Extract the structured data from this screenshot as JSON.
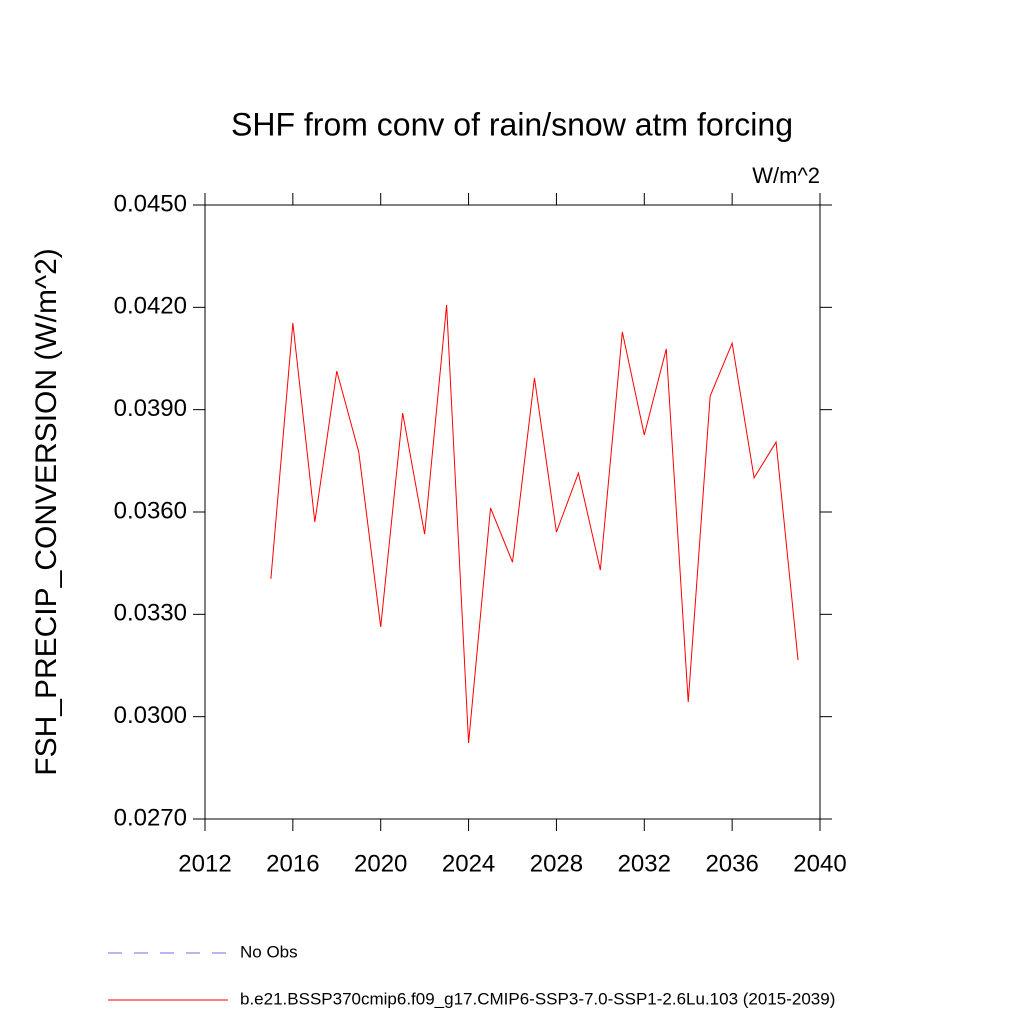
{
  "chart_data": {
    "type": "line",
    "title": "SHF from conv of rain/snow atm forcing",
    "units": "W/m^2",
    "y_label": "FSH_PRECIP_CONVERSION  (W/m^2)",
    "x": [
      2015,
      2016,
      2017,
      2018,
      2019,
      2020,
      2021,
      2022,
      2023,
      2024,
      2025,
      2026,
      2027,
      2028,
      2029,
      2030,
      2031,
      2032,
      2033,
      2034,
      2035,
      2036,
      2037,
      2038,
      2039
    ],
    "series": [
      {
        "name": "b.e21.BSSP370cmip6.f09_g17.CMIP6-SSP3-7.0-SSP1-2.6Lu.103 (2015-2039)",
        "color": "#ff0000",
        "values": [
          0.03404,
          0.04154,
          0.03571,
          0.04013,
          0.03776,
          0.03263,
          0.0389,
          0.03535,
          0.04207,
          0.02923,
          0.03612,
          0.03453,
          0.03993,
          0.03541,
          0.03714,
          0.0343,
          0.04128,
          0.03826,
          0.04078,
          0.03043,
          0.0394,
          0.04095,
          0.037,
          0.03805,
          0.03166
        ]
      }
    ],
    "reference_legend": {
      "name": "No Obs",
      "color": "#7b68ee"
    },
    "xlim": [
      2012,
      2040
    ],
    "xticks": [
      2012,
      2016,
      2020,
      2024,
      2028,
      2032,
      2036,
      2040
    ],
    "ylim": [
      0.027,
      0.045
    ],
    "yticks": [
      {
        "value": 0.027,
        "label": "0.0270"
      },
      {
        "value": 0.03,
        "label": "0.0300"
      },
      {
        "value": 0.033,
        "label": "0.0330"
      },
      {
        "value": 0.036,
        "label": "0.0360"
      },
      {
        "value": 0.039,
        "label": "0.0390"
      },
      {
        "value": 0.042,
        "label": "0.0420"
      },
      {
        "value": 0.045,
        "label": "0.0450"
      }
    ]
  }
}
